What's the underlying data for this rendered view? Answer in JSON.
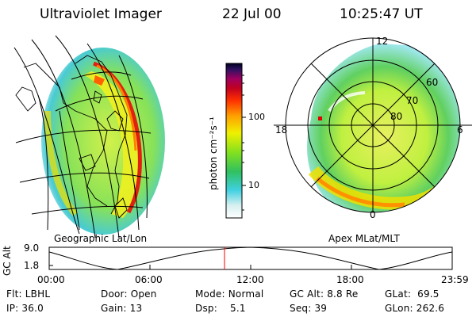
{
  "header": {
    "instrument": "Ultraviolet Imager",
    "date": "22 Jul 00",
    "time": "10:25:47 UT"
  },
  "colorbar": {
    "unit_label": "photon cm⁻²s⁻¹",
    "tick_labels": [
      "100",
      "10"
    ],
    "scale": "log"
  },
  "geo_panel": {
    "caption": "Geographic Lat/Lon"
  },
  "polar_panel": {
    "caption": "Apex MLat/MLT",
    "mlt_labels": {
      "top": "12",
      "left": "18",
      "right": "6",
      "bottom": "0"
    },
    "lat_labels": [
      "60",
      "70",
      "80"
    ]
  },
  "altitude_plot": {
    "ylabel": "GC Alt",
    "y_ticks": [
      "9.0",
      "1.8"
    ],
    "x_ticks": [
      "00:00",
      "06:00",
      "12:00",
      "18:00",
      "23:59"
    ],
    "current_time_fraction": 0.435
  },
  "status": {
    "filter": "Flt: LBHL",
    "ip": "IP: 36.0",
    "door": "Door: Open",
    "gain": "Gain: 13",
    "mode": "Mode: Normal",
    "dsp": "Dsp:    5.1",
    "gc_alt": "GC Alt: 8.8 Re",
    "seq": "Seq: 39",
    "glat": "GLat:  69.5",
    "glon": "GLon: 262.6"
  },
  "colors": {
    "current_time_marker": "#ff0000",
    "background": "#ffffff"
  }
}
